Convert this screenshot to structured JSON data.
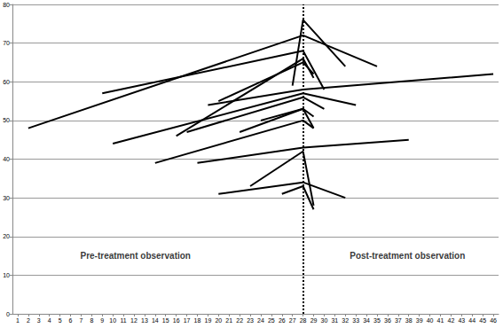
{
  "chart_data": {
    "type": "line",
    "color": "#000000",
    "grid": true,
    "xlim": [
      0.5,
      46.5
    ],
    "xticks": [
      1,
      2,
      3,
      4,
      5,
      6,
      7,
      8,
      9,
      10,
      11,
      12,
      13,
      14,
      15,
      16,
      17,
      18,
      19,
      20,
      21,
      22,
      23,
      24,
      25,
      26,
      27,
      28,
      29,
      30,
      31,
      32,
      33,
      34,
      35,
      36,
      37,
      38,
      39,
      40,
      41,
      42,
      43,
      44,
      45,
      46
    ],
    "ylim": [
      0,
      80
    ],
    "yticks": [
      0,
      10,
      20,
      30,
      40,
      50,
      60,
      70,
      80
    ],
    "vline": {
      "x": 28,
      "line_style": "dotted"
    },
    "annotations": [
      {
        "text": "Pre-treatment observation",
        "x": 6.5,
        "y": 15
      },
      {
        "text": "Post-treatment observation",
        "x": 32,
        "y": 15
      }
    ],
    "series": [
      {
        "x": [
          2,
          28,
          35
        ],
        "values": [
          48,
          72,
          64
        ]
      },
      {
        "x": [
          9,
          28,
          30
        ],
        "values": [
          57,
          68,
          58
        ]
      },
      {
        "x": [
          27,
          28,
          32
        ],
        "values": [
          59,
          76,
          64
        ]
      },
      {
        "x": [
          16,
          28,
          29
        ],
        "values": [
          46,
          66,
          61
        ]
      },
      {
        "x": [
          20,
          28,
          29
        ],
        "values": [
          55,
          65,
          62
        ]
      },
      {
        "x": [
          19,
          28,
          46
        ],
        "values": [
          54,
          58,
          62
        ]
      },
      {
        "x": [
          10,
          28,
          33
        ],
        "values": [
          44,
          57,
          54
        ]
      },
      {
        "x": [
          17,
          28,
          30
        ],
        "values": [
          47,
          56,
          53
        ]
      },
      {
        "x": [
          22,
          28,
          29
        ],
        "values": [
          47,
          53,
          48
        ]
      },
      {
        "x": [
          24,
          28,
          29
        ],
        "values": [
          50,
          53,
          51
        ]
      },
      {
        "x": [
          14,
          28,
          29
        ],
        "values": [
          39,
          50,
          48
        ]
      },
      {
        "x": [
          18,
          28,
          38
        ],
        "values": [
          39,
          43,
          45
        ]
      },
      {
        "x": [
          23,
          28,
          29
        ],
        "values": [
          33,
          42,
          28
        ]
      },
      {
        "x": [
          20,
          28,
          32
        ],
        "values": [
          31,
          34,
          30
        ]
      },
      {
        "x": [
          26,
          28,
          29
        ],
        "values": [
          31,
          33,
          27
        ]
      }
    ]
  }
}
